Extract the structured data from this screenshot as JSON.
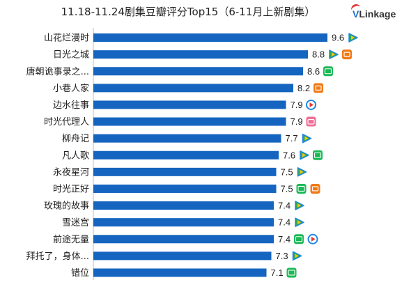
{
  "title": "11.18-11.24剧集豆瓣评分Top15（6-11月上新剧集）",
  "logo": {
    "prefix": "V",
    "rest": "Linkage"
  },
  "chart_data": {
    "type": "bar",
    "orientation": "horizontal",
    "title": "11.18-11.24剧集豆瓣评分Top15（6-11月上新剧集）",
    "xlabel": "",
    "ylabel": "",
    "categories": [
      "山花烂漫时",
      "日光之城",
      "唐朝诡事录之...",
      "小巷人家",
      "边水往事",
      "时光代理人",
      "柳舟记",
      "凡人歌",
      "永夜星河",
      "时光正好",
      "玫瑰的故事",
      "雪迷宫",
      "前途无量",
      "拜托了，身体...",
      "错位"
    ],
    "values": [
      9.6,
      8.8,
      8.6,
      8.2,
      7.9,
      7.9,
      7.7,
      7.6,
      7.5,
      7.5,
      7.4,
      7.4,
      7.4,
      7.3,
      7.1
    ],
    "value_labels": [
      "9.6",
      "8.8",
      "8.6",
      "8.2",
      "7.9",
      "7.9",
      "7.7",
      "7.6",
      "7.5",
      "7.5",
      "7.4",
      "7.4",
      "7.4",
      "7.3",
      "7.1"
    ],
    "platforms": [
      [
        "tencent"
      ],
      [
        "tencent",
        "mango"
      ],
      [
        "iqiyi"
      ],
      [
        "mango"
      ],
      [
        "youku"
      ],
      [
        "bilibili"
      ],
      [
        "tencent"
      ],
      [
        "tencent",
        "iqiyi"
      ],
      [
        "tencent"
      ],
      [
        "iqiyi",
        "mango"
      ],
      [
        "tencent"
      ],
      [
        "tencent"
      ],
      [
        "iqiyi",
        "youku"
      ],
      [
        "tencent"
      ],
      [
        "iqiyi"
      ]
    ],
    "bar_color": "#1565c0",
    "platform_colors": {
      "tencent": "#2fa84f",
      "mango": "#f07a18",
      "iqiyi": "#19b955",
      "youku": "#1e88e5",
      "bilibili": "#f26f97"
    },
    "grid": false,
    "legend": "none"
  }
}
